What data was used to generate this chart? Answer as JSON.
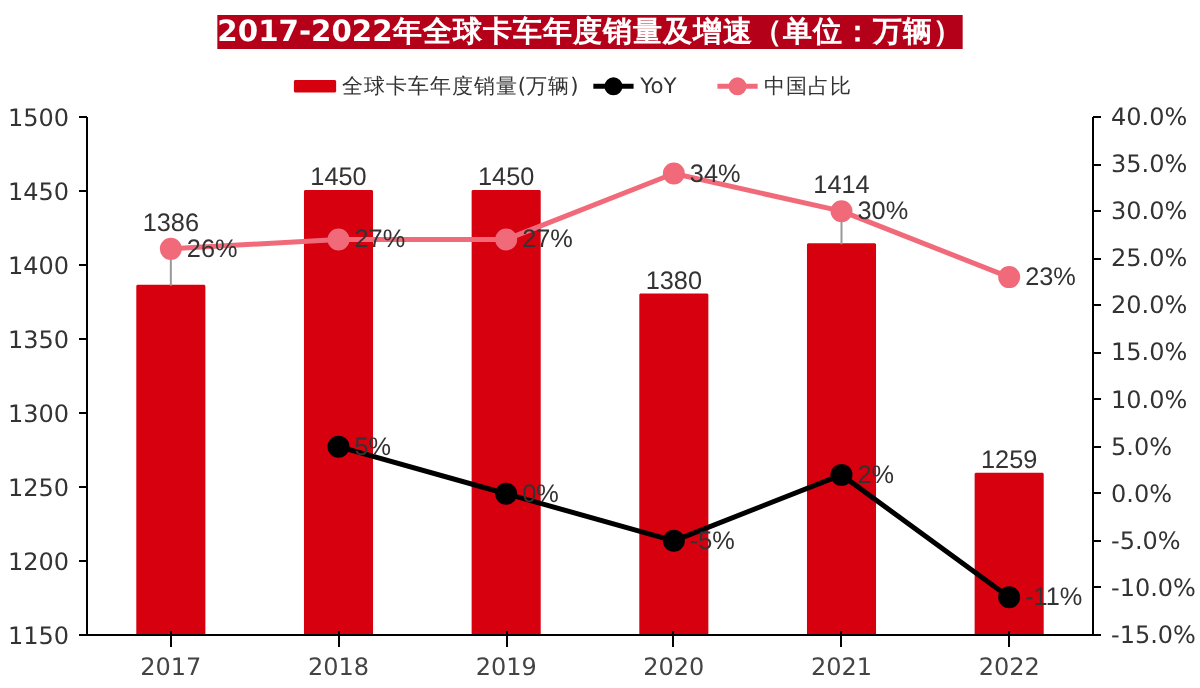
{
  "chart_data": {
    "type": "bar",
    "title": "2017-2022年全球卡车年度销量及增速（单位：万辆）",
    "categories": [
      "2017",
      "2018",
      "2019",
      "2020",
      "2021",
      "2022"
    ],
    "series": [
      {
        "name": "全球卡车年度销量(万辆)",
        "color": "#d7000f",
        "values": [
          1386,
          1450,
          1450,
          1380,
          1414,
          1259
        ],
        "value_labels": [
          "1386",
          "1450",
          "1450",
          "1380",
          "1414",
          "1259"
        ]
      },
      {
        "name": "YoY",
        "type": "line",
        "axis": "y2",
        "color": "#000000",
        "values": [
          null,
          5,
          0,
          -5,
          2,
          -11
        ],
        "value_labels": [
          null,
          "5%",
          "0%",
          "-5%",
          "2%",
          "-11%"
        ]
      },
      {
        "name": "中国占比",
        "type": "line",
        "axis": "y2",
        "color": "#f06a7a",
        "values": [
          26,
          27,
          27,
          34,
          30,
          23
        ],
        "value_labels": [
          "26%",
          "27%",
          "27%",
          "34%",
          "30%",
          "23%"
        ]
      }
    ],
    "ylim": [
      1150,
      1500
    ],
    "yticks": [
      1150,
      1200,
      1250,
      1300,
      1350,
      1400,
      1450,
      1500
    ],
    "y2lim": [
      -15,
      40
    ],
    "y2ticks": [
      {
        "value": -15,
        "label": "-15.0%"
      },
      {
        "value": -10,
        "label": "-10.0%"
      },
      {
        "value": -5,
        "label": "-5.0%"
      },
      {
        "value": 0,
        "label": "0.0%"
      },
      {
        "value": 5,
        "label": "5.0%"
      },
      {
        "value": 10,
        "label": "10.0%"
      },
      {
        "value": 15,
        "label": "15.0%"
      },
      {
        "value": 20,
        "label": "20.0%"
      },
      {
        "value": 25,
        "label": "25.0%"
      },
      {
        "value": 30,
        "label": "30.0%"
      },
      {
        "value": 35,
        "label": "35.0%"
      },
      {
        "value": 40,
        "label": "40.0%"
      }
    ],
    "marker": "circle",
    "grid": false,
    "legend": "top"
  }
}
